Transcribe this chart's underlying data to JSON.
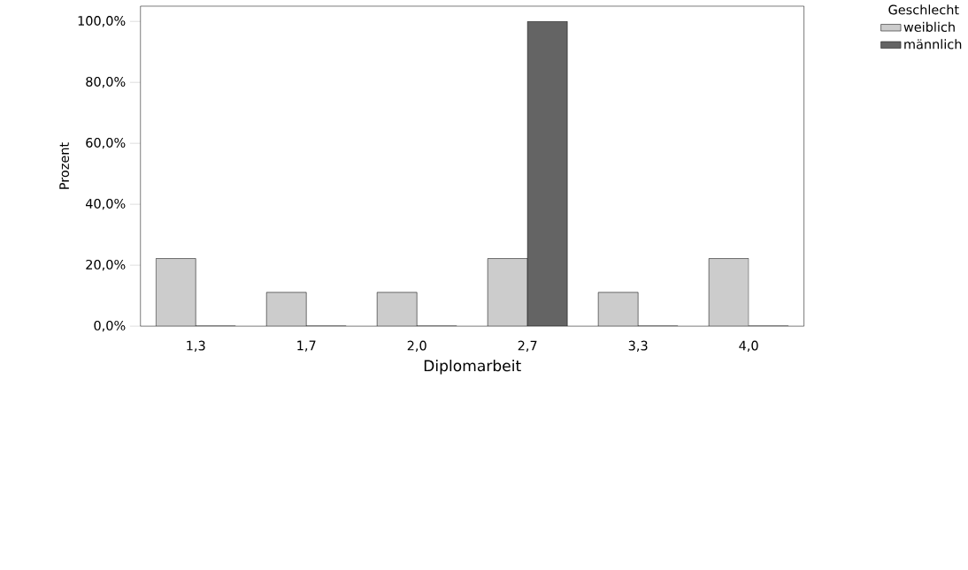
{
  "chart_data": {
    "type": "bar",
    "xlabel": "Diplomarbeit",
    "ylabel": "Prozent",
    "legend_title": "Geschlecht",
    "legend": "top right",
    "categories": [
      "1,3",
      "1,7",
      "2,0",
      "2,7",
      "3,3",
      "4,0"
    ],
    "series": [
      {
        "name": "weiblich",
        "color": "#cccccc",
        "values": [
          22.2,
          11.1,
          11.1,
          22.2,
          11.1,
          22.2
        ]
      },
      {
        "name": "männlich",
        "color": "#646464",
        "values": [
          0,
          0,
          0,
          100,
          0,
          0
        ]
      }
    ],
    "ylim": [
      0,
      105
    ],
    "yticks": [
      {
        "value": 0,
        "label": "0,0%"
      },
      {
        "value": 20,
        "label": "20,0%"
      },
      {
        "value": 40,
        "label": "40,0%"
      },
      {
        "value": 60,
        "label": "60,0%"
      },
      {
        "value": 80,
        "label": "80,0%"
      },
      {
        "value": 100,
        "label": "100,0%"
      }
    ]
  }
}
